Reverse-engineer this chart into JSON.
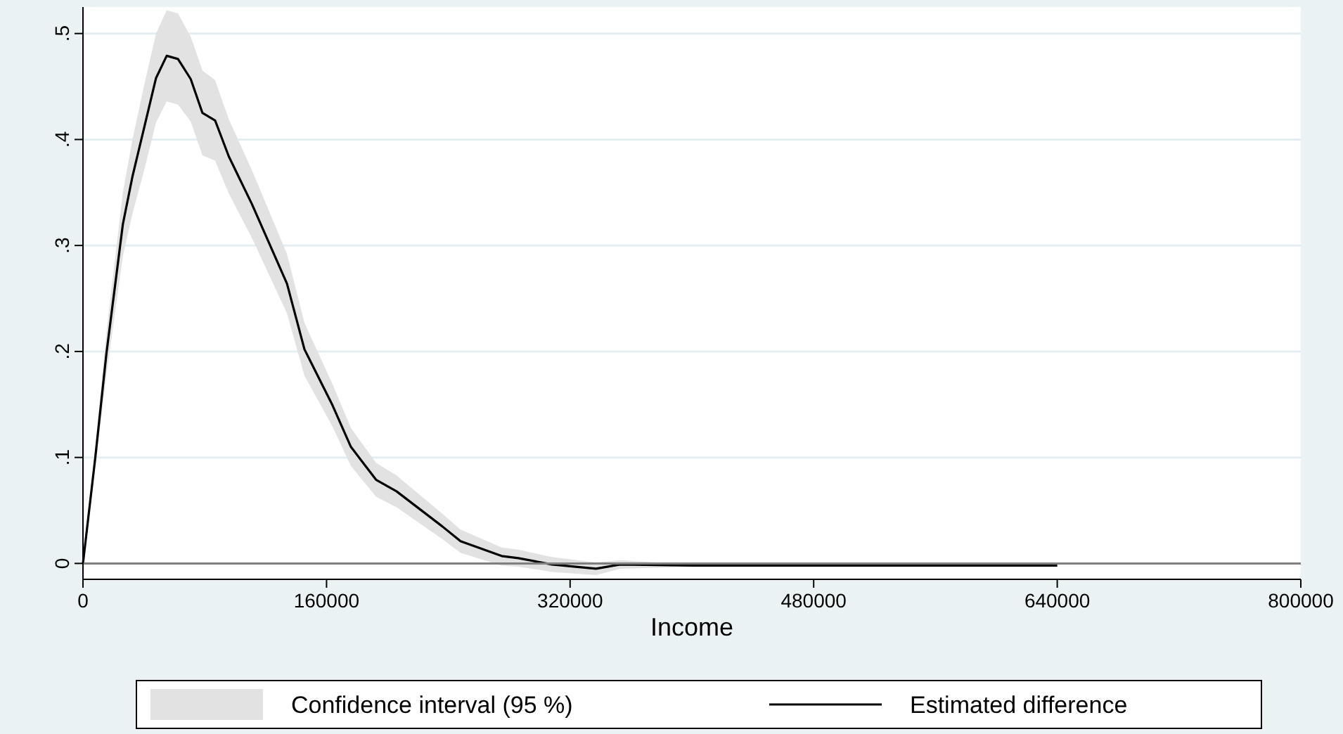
{
  "chart_data": {
    "type": "line",
    "xlabel": "Income",
    "xlim": [
      0,
      800000
    ],
    "xticks": [
      0,
      160000,
      320000,
      480000,
      640000,
      800000
    ],
    "ylim": [
      -0.015,
      0.525
    ],
    "yticks": [
      {
        "value": 0,
        "label": "0"
      },
      {
        "value": 0.1,
        "label": ".1"
      },
      {
        "value": 0.2,
        "label": ".2"
      },
      {
        "value": 0.3,
        "label": ".3"
      },
      {
        "value": 0.4,
        "label": ".4"
      },
      {
        "value": 0.5,
        "label": ".5"
      }
    ],
    "grid": "y",
    "legend": "bottom",
    "ref_lines": [
      {
        "axis": "y",
        "value": 0,
        "color": "#7f7f7f"
      }
    ],
    "annotations": [
      "Confidence interval (95 %)"
    ],
    "series": [
      {
        "name": "Estimated difference",
        "color": "#000000",
        "x": [
          0,
          8100,
          15400,
          26200,
          32500,
          40000,
          48000,
          55000,
          62400,
          70800,
          78500,
          86800,
          95800,
          111000,
          134000,
          145500,
          164000,
          176000,
          192500,
          206000,
          236000,
          248000,
          275000,
          286000,
          308000,
          337000,
          353000,
          400000,
          640000
        ],
        "values": [
          0,
          0.1,
          0.198,
          0.32,
          0.365,
          0.41,
          0.458,
          0.479,
          0.476,
          0.457,
          0.425,
          0.418,
          0.384,
          0.339,
          0.264,
          0.202,
          0.149,
          0.11,
          0.079,
          0.068,
          0.035,
          0.021,
          0.007,
          0.005,
          -0.001,
          -0.005,
          -0.001,
          -0.002,
          -0.002
        ],
        "lower": [
          0,
          0.09,
          0.178,
          0.29,
          0.33,
          0.37,
          0.416,
          0.436,
          0.433,
          0.417,
          0.385,
          0.38,
          0.349,
          0.307,
          0.236,
          0.177,
          0.129,
          0.092,
          0.063,
          0.053,
          0.023,
          0.01,
          -0.002,
          -0.003,
          -0.008,
          -0.011,
          -0.005,
          -0.003,
          -0.003
        ],
        "upper": [
          0,
          0.11,
          0.218,
          0.35,
          0.4,
          0.45,
          0.5,
          0.522,
          0.519,
          0.497,
          0.465,
          0.456,
          0.419,
          0.371,
          0.292,
          0.227,
          0.169,
          0.128,
          0.095,
          0.083,
          0.047,
          0.032,
          0.015,
          0.013,
          0.006,
          0.001,
          0.003,
          -0.001,
          -0.001
        ]
      }
    ]
  }
}
